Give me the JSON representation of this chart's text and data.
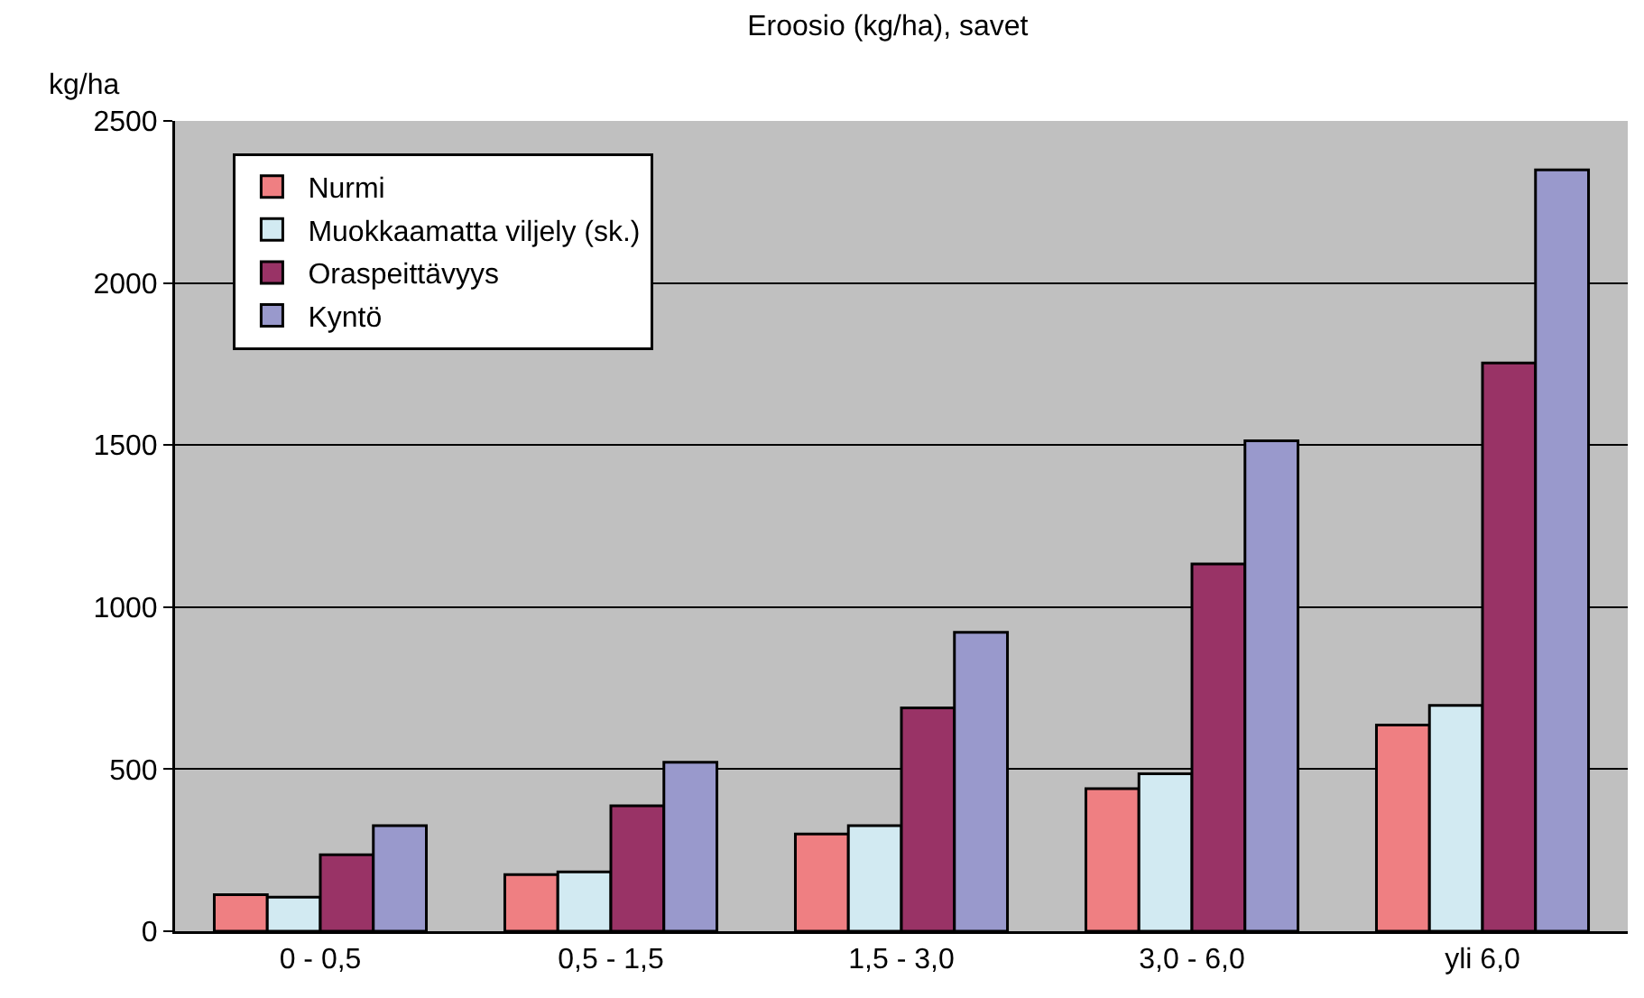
{
  "chart_data": {
    "type": "bar",
    "title": "Eroosio (kg/ha), savet",
    "ylabel": "kg/ha",
    "categories": [
      "0 - 0,5",
      "0,5 - 1,5",
      "1,5 - 3,0",
      "3,0 - 6,0",
      "yli 6,0"
    ],
    "series": [
      {
        "name": "Nurmi",
        "color": "#ef7f82",
        "values": [
          113,
          175,
          300,
          440,
          636
        ]
      },
      {
        "name": "Muokkaamatta viljely (sk.)",
        "color": "#d2eaf2",
        "values": [
          105,
          183,
          326,
          486,
          697
        ]
      },
      {
        "name": "Oraspeittävyys",
        "color": "#993366",
        "values": [
          236,
          387,
          689,
          1133,
          1753
        ]
      },
      {
        "name": "Kyntö",
        "color": "#9999cc",
        "values": [
          326,
          521,
          922,
          1513,
          2349
        ]
      }
    ],
    "ylim": [
      0,
      2500
    ],
    "yticks": [
      0,
      500,
      1000,
      1500,
      2000,
      2500
    ],
    "grid": "y",
    "legend": "top left"
  }
}
